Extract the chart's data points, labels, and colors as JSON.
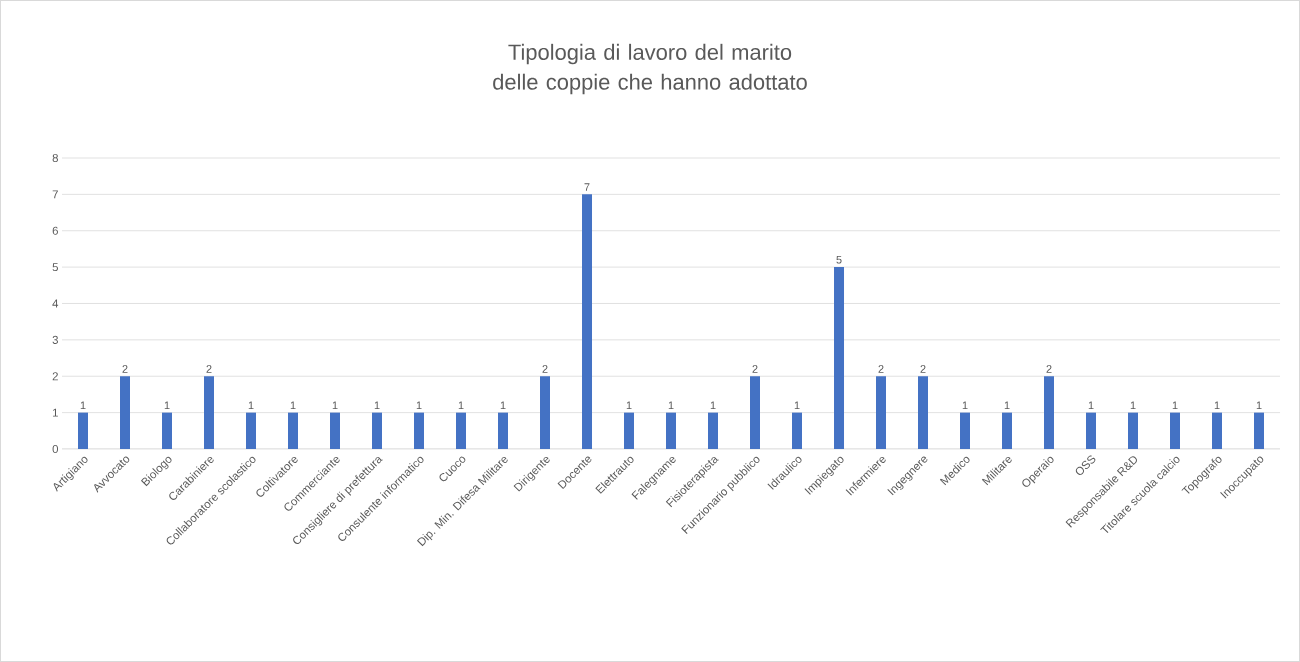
{
  "chart_data": {
    "type": "bar",
    "title": "Tipologia di lavoro del marito delle coppie che hanno adottato",
    "categories": [
      "Artigiano",
      "Avvocato",
      "Biologo",
      "Carabiniere",
      "Collaboratore scolastico",
      "Coltivatore",
      "Commerciante",
      "Consigliere di prefettura",
      "Consulente informatico",
      "Cuoco",
      "Dip. Min. Difesa Militare",
      "Dirigente",
      "Docente",
      "Elettrauto",
      "Falegname",
      "Fisioterapista",
      "Funzionario pubblico",
      "Idraulico",
      "Impiegato",
      "Infermiere",
      "Ingegnere",
      "Medico",
      "Militare",
      "Operaio",
      "OSS",
      "Responsabile R&D",
      "Titolare scuola calcio",
      "Topografo",
      "Inoccupato"
    ],
    "values": [
      1,
      2,
      1,
      2,
      1,
      1,
      1,
      1,
      1,
      1,
      1,
      2,
      7,
      1,
      1,
      1,
      2,
      1,
      5,
      2,
      2,
      1,
      1,
      2,
      1,
      1,
      1,
      1,
      1
    ],
    "color": "#4472c4",
    "ylim": [
      0,
      8
    ],
    "yticks": [
      0,
      1,
      2,
      3,
      4,
      5,
      6,
      7,
      8
    ],
    "grid": "y",
    "data_labels": true
  }
}
